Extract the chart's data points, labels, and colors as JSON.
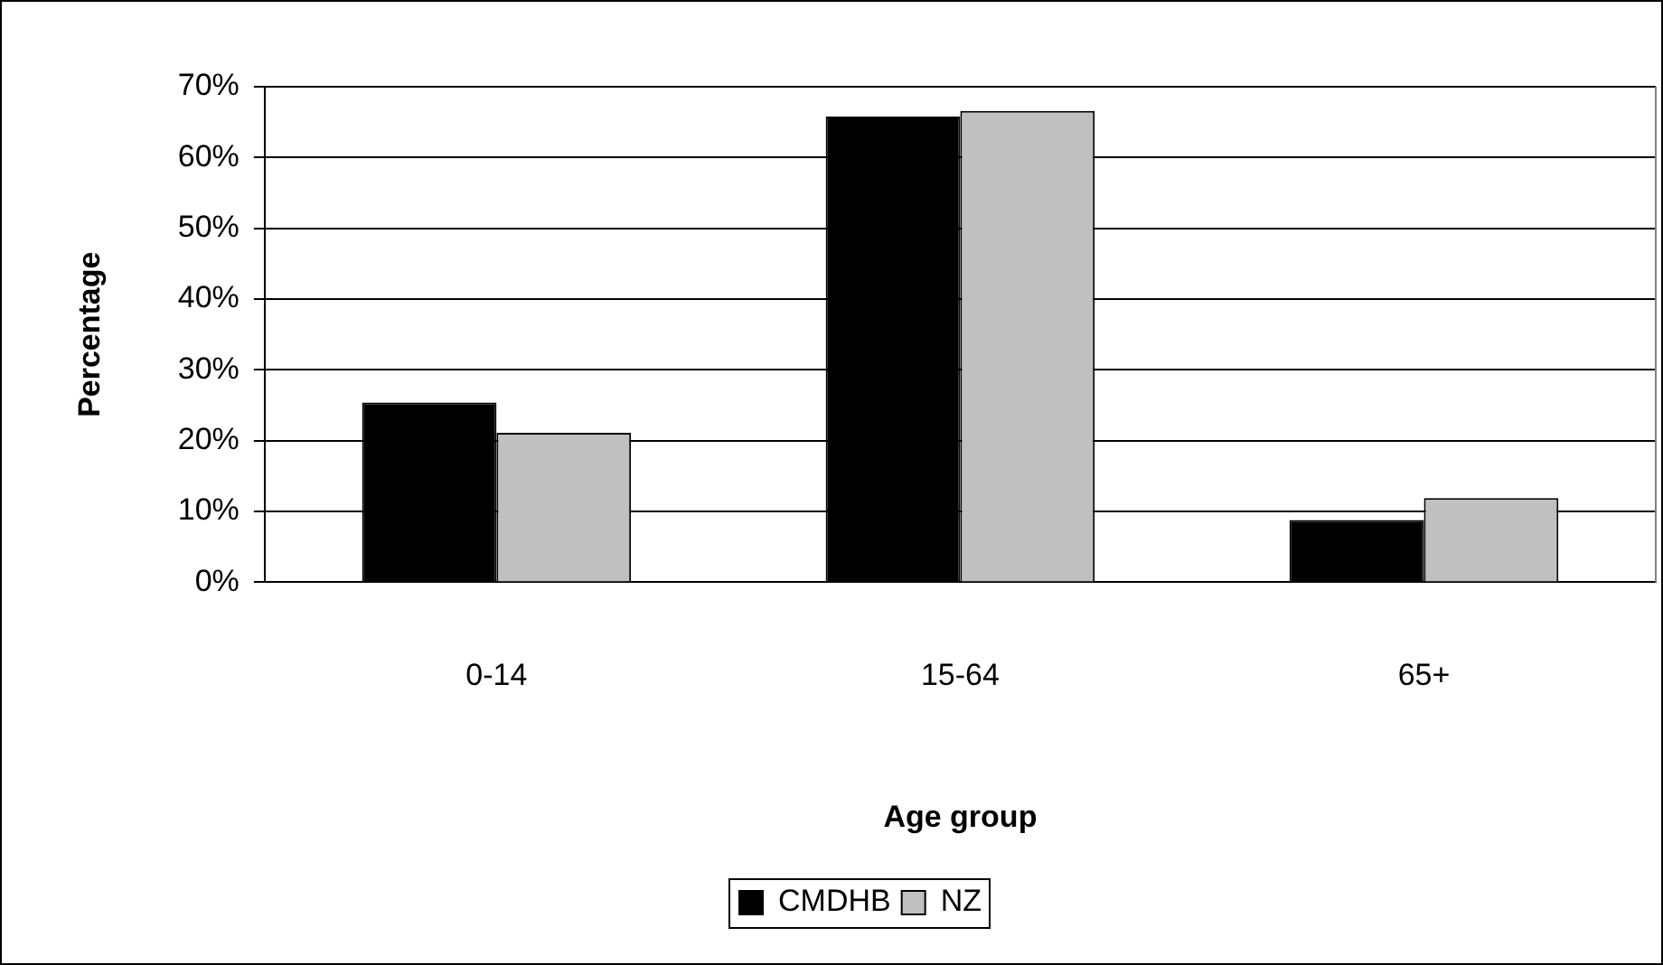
{
  "chart_data": {
    "type": "bar",
    "xlabel": "Age group",
    "ylabel": "Percentage",
    "categories": [
      "0-14",
      "15-64",
      "65+"
    ],
    "series": [
      {
        "name": "CMDHB",
        "color": "#000000",
        "values": [
          25.4,
          65.8,
          8.8
        ]
      },
      {
        "name": "NZ",
        "color": "#c0c0c0",
        "values": [
          21.1,
          66.6,
          11.9
        ]
      }
    ],
    "ylim": [
      0,
      70
    ],
    "yticks": [
      {
        "value": 0,
        "label": "0%"
      },
      {
        "value": 10,
        "label": "10%"
      },
      {
        "value": 20,
        "label": "20%"
      },
      {
        "value": 30,
        "label": "30%"
      },
      {
        "value": 40,
        "label": "40%"
      },
      {
        "value": 50,
        "label": "50%"
      },
      {
        "value": 60,
        "label": "60%"
      },
      {
        "value": 70,
        "label": "70%"
      }
    ],
    "grid": "y",
    "legend": "bottom"
  }
}
